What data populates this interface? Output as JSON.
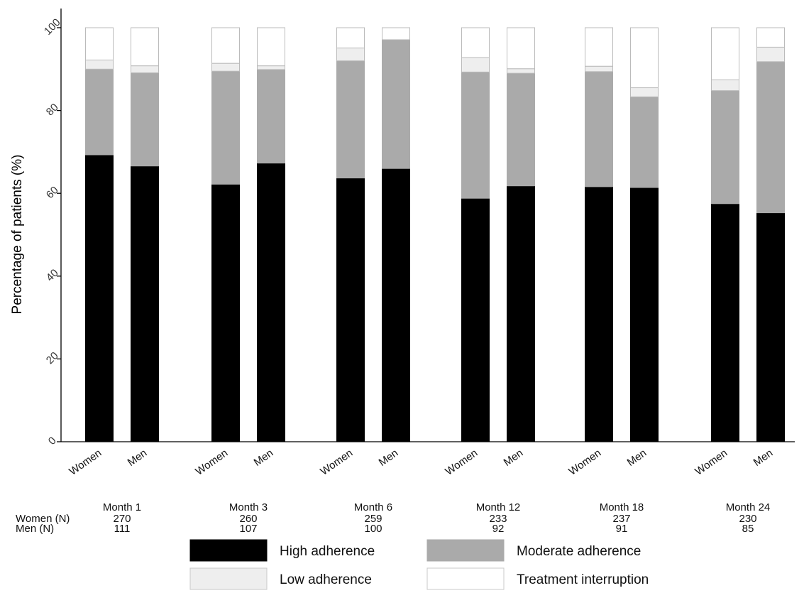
{
  "chart_data": {
    "type": "bar",
    "stacked": true,
    "ylabel": "Percentage of patients (%)",
    "ylim": [
      0,
      100
    ],
    "yticks": [
      0,
      20,
      40,
      60,
      80,
      100
    ],
    "grid": false,
    "groups": [
      "Month 1",
      "Month 3",
      "Month 6",
      "Month 12",
      "Month 18",
      "Month 24"
    ],
    "bar_labels": [
      "Women",
      "Men"
    ],
    "n_rows": [
      {
        "label": "Women (N)",
        "values": [
          "270",
          "260",
          "259",
          "233",
          "237",
          "230"
        ]
      },
      {
        "label": "Men (N)",
        "values": [
          "111",
          "107",
          "100",
          "92",
          "91",
          "85"
        ]
      }
    ],
    "series": [
      {
        "name": "High adherence",
        "color": "#000000",
        "women": [
          69.3,
          62.2,
          63.7,
          58.8,
          61.6,
          57.5
        ],
        "men": [
          66.6,
          67.3,
          66.0,
          61.8,
          61.4,
          55.3
        ]
      },
      {
        "name": "Moderate adherence",
        "color": "#aaaaaa",
        "women": [
          20.7,
          27.3,
          28.3,
          30.5,
          27.8,
          27.3
        ],
        "men": [
          22.5,
          22.6,
          31.1,
          27.2,
          21.9,
          36.5
        ]
      },
      {
        "name": "Low adherence",
        "color": "#eeeeee",
        "women": [
          2.2,
          1.9,
          3.1,
          3.5,
          1.3,
          2.6
        ],
        "men": [
          1.7,
          0.9,
          0.0,
          1.1,
          2.2,
          3.5
        ]
      },
      {
        "name": "Treatment interruption",
        "color": "#ffffff",
        "women": [
          7.8,
          8.6,
          4.9,
          7.2,
          9.3,
          12.6
        ],
        "men": [
          9.2,
          9.2,
          2.9,
          9.9,
          14.5,
          4.7
        ]
      }
    ],
    "legend_position": "bottom"
  }
}
